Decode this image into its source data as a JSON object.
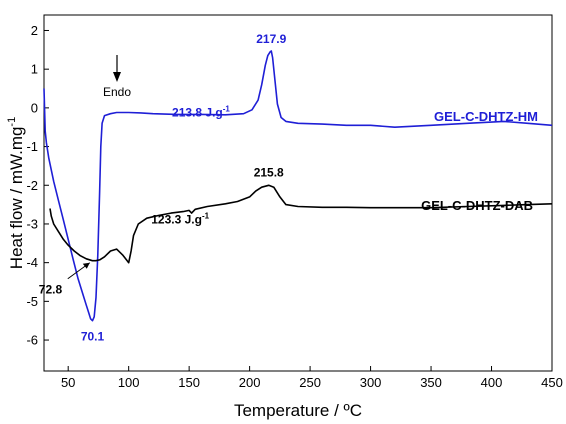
{
  "chart_data": {
    "type": "line",
    "xlabel": "Temperature  / ºC",
    "ylabel": "Heat flow / mW.mg",
    "ylabel_superscript": "-1",
    "xlim": [
      30,
      450
    ],
    "ylim": [
      -6.8,
      2.4
    ],
    "x_ticks": [
      50,
      100,
      150,
      200,
      250,
      300,
      350,
      400,
      450
    ],
    "y_ticks": [
      -6,
      -5,
      -4,
      -3,
      -2,
      -1,
      0,
      1,
      2
    ],
    "grid": false,
    "colors": {
      "hm": "#1f1fd6",
      "dab": "#000000"
    },
    "series": [
      {
        "name": "GEL-C-DHTZ-HM",
        "color": "#1f1fd6",
        "x": [
          30,
          31,
          32,
          34,
          38,
          42,
          46,
          50,
          54,
          58,
          62,
          65,
          67,
          68.5,
          70.1,
          71.5,
          73,
          74.5,
          76,
          77,
          78,
          80,
          85,
          90,
          100,
          110,
          120,
          140,
          160,
          180,
          195,
          202,
          207,
          210,
          213,
          215,
          217,
          217.9,
          219,
          221,
          223,
          226,
          230,
          240,
          260,
          280,
          300,
          320,
          350,
          380,
          410,
          430,
          450
        ],
        "y": [
          0.5,
          -0.6,
          -0.9,
          -1.3,
          -1.9,
          -2.4,
          -2.9,
          -3.4,
          -3.9,
          -4.4,
          -4.8,
          -5.1,
          -5.3,
          -5.45,
          -5.5,
          -5.4,
          -4.9,
          -3.8,
          -2.2,
          -1.0,
          -0.4,
          -0.2,
          -0.15,
          -0.12,
          -0.12,
          -0.13,
          -0.15,
          -0.17,
          -0.17,
          -0.18,
          -0.15,
          -0.05,
          0.2,
          0.6,
          1.1,
          1.35,
          1.45,
          1.47,
          1.3,
          0.7,
          0.1,
          -0.25,
          -0.35,
          -0.4,
          -0.42,
          -0.45,
          -0.45,
          -0.5,
          -0.45,
          -0.4,
          -0.35,
          -0.4,
          -0.45
        ]
      },
      {
        "name": "GEL-C-DHTZ-DAB",
        "color": "#000000",
        "x": [
          35,
          36,
          38,
          42,
          46,
          50,
          55,
          60,
          65,
          70,
          72.8,
          76,
          80,
          85,
          90,
          95,
          100,
          102,
          104,
          108,
          115,
          125,
          135,
          145,
          150,
          152,
          155,
          165,
          180,
          190,
          200,
          205,
          210,
          215.8,
          220,
          225,
          230,
          240,
          260,
          280,
          300,
          320,
          350,
          380,
          410,
          430,
          450
        ],
        "y": [
          -2.6,
          -2.8,
          -3.0,
          -3.2,
          -3.4,
          -3.55,
          -3.7,
          -3.82,
          -3.9,
          -3.95,
          -3.95,
          -3.93,
          -3.85,
          -3.7,
          -3.65,
          -3.8,
          -4.0,
          -3.7,
          -3.3,
          -3.0,
          -2.85,
          -2.78,
          -2.72,
          -2.68,
          -2.65,
          -2.72,
          -2.62,
          -2.55,
          -2.48,
          -2.42,
          -2.3,
          -2.15,
          -2.05,
          -2.0,
          -2.05,
          -2.3,
          -2.5,
          -2.55,
          -2.57,
          -2.57,
          -2.58,
          -2.58,
          -2.58,
          -2.55,
          -2.52,
          -2.5,
          -2.48
        ]
      }
    ],
    "annotations": [
      {
        "id": "hm-peak",
        "text": "217.9",
        "x": 217.9,
        "y": 1.47,
        "color": "#1f1fd6"
      },
      {
        "id": "hm-enthalpy",
        "text": "213.8 J.g",
        "sup": "-1",
        "x": 140,
        "y": -0.15,
        "color": "#1f1fd6"
      },
      {
        "id": "hm-min",
        "text": "70.1",
        "x": 70.1,
        "y": -5.5,
        "color": "#1f1fd6"
      },
      {
        "id": "dab-peak",
        "text": "215.8",
        "x": 215.8,
        "y": -2.0,
        "color": "#000000"
      },
      {
        "id": "dab-enthalpy",
        "text": "123.3 J.g",
        "sup": "-1",
        "x": 160,
        "y": -2.75,
        "color": "#000000"
      },
      {
        "id": "dab-min",
        "text": "72.8",
        "x": 72.8,
        "y": -3.95,
        "color": "#000000"
      }
    ],
    "endo_label": "Endo"
  }
}
